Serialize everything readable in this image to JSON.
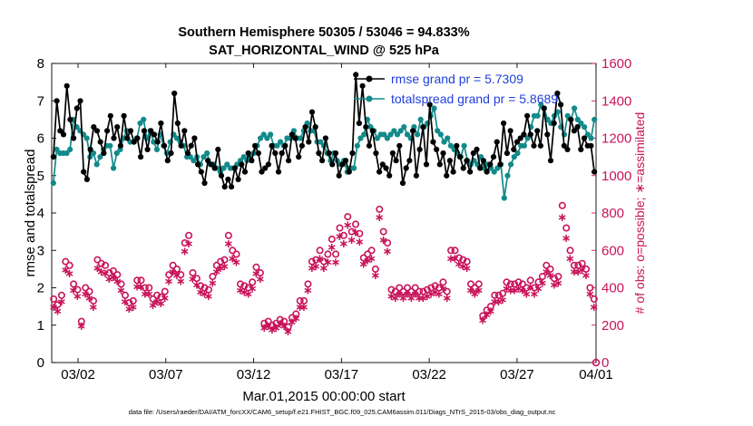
{
  "chart_data": {
    "type": "line",
    "title": "Southern Hemisphere 50305 / 53046 = 94.833%",
    "subtitle": "SAT_HORIZONTAL_WIND @ 525 hPa",
    "xlabel": "Mar.01,2015 00:00:00 start",
    "ylabel": "rmse and totalspread",
    "y2label": "# of obs: o=possible; ∗=assimilated",
    "footer": "data file: /Users/raeder/DAI/ATM_forcXX/CAM6_setup/f.e21.FHIST_BGC.f09_025.CAM6assim.011/Diags_NTrS_2015-03/obs_diag_output.nc",
    "xlim": [
      0,
      31
    ],
    "ylim": [
      0,
      8
    ],
    "y2lim": [
      0,
      1600
    ],
    "xticks": [
      {
        "day": 1.5,
        "label": "03/02"
      },
      {
        "day": 6.5,
        "label": "03/07"
      },
      {
        "day": 11.5,
        "label": "03/12"
      },
      {
        "day": 16.5,
        "label": "03/17"
      },
      {
        "day": 21.5,
        "label": "03/22"
      },
      {
        "day": 26.5,
        "label": "03/27"
      },
      {
        "day": 31.0,
        "label": "04/01"
      }
    ],
    "yticks": [
      "0",
      "1",
      "2",
      "3",
      "4",
      "5",
      "6",
      "7",
      "8"
    ],
    "y2ticks": [
      "0",
      "200",
      "400",
      "600",
      "800",
      "1000",
      "1200",
      "1400",
      "1600"
    ],
    "colors": {
      "rmse": "#000000",
      "spread": "#138a8a",
      "obs": "#c8145a",
      "legend_text": "#1f3fdc"
    },
    "legend": [
      {
        "name": "rmse grand pr = 5.7309",
        "series": "rmse"
      },
      {
        "name": "totalspread grand pr = 5.8689",
        "series": "spread"
      }
    ],
    "series": [
      {
        "name": "rmse",
        "axis": "left",
        "values": [
          5.5,
          7.0,
          6.2,
          6.1,
          7.4,
          6.5,
          6.0,
          6.8,
          7.0,
          5.1,
          4.9,
          5.7,
          6.3,
          6.2,
          5.9,
          5.6,
          6.2,
          6.6,
          6.0,
          6.3,
          5.8,
          6.6,
          6.0,
          6.2,
          5.9,
          6.0,
          5.5,
          6.2,
          5.7,
          6.2,
          6.1,
          5.9,
          6.4,
          5.8,
          5.4,
          5.6,
          7.2,
          6.4,
          5.8,
          6.2,
          5.6,
          5.8,
          6.0,
          5.3,
          5.1,
          4.8,
          5.4,
          5.3,
          5.2,
          5.7,
          5.0,
          4.7,
          4.9,
          4.7,
          5.2,
          4.9,
          5.3,
          5.1,
          5.6,
          5.4,
          5.8,
          5.6,
          5.1,
          5.2,
          5.3,
          5.8,
          5.6,
          5.1,
          5.6,
          5.8,
          5.4,
          6.1,
          6.0,
          5.5,
          5.8,
          6.3,
          5.9,
          6.7,
          6.3,
          5.6,
          5.4,
          6.0,
          5.6,
          5.3,
          5.6,
          5.0,
          5.3,
          5.4,
          5.1,
          5.6,
          7.7,
          6.4,
          7.4,
          6.3,
          5.8,
          6.2,
          5.6,
          5.1,
          5.3,
          5.2,
          5.0,
          5.6,
          5.4,
          5.8,
          4.8,
          5.2,
          5.4,
          6.2,
          5.0,
          5.7,
          6.3,
          5.3,
          6.9,
          5.9,
          5.7,
          5.3,
          5.6,
          5.0,
          5.4,
          5.1,
          5.8,
          5.5,
          5.2,
          5.4,
          5.1,
          5.6,
          5.7,
          5.2,
          5.4,
          5.1,
          5.3,
          5.5,
          5.9,
          5.3,
          6.4,
          5.6,
          6.2,
          5.7,
          5.9,
          6.0,
          6.1,
          6.6,
          6.1,
          5.8,
          6.2,
          5.8,
          6.8,
          6.1,
          5.4,
          6.4,
          7.2,
          6.9,
          5.8,
          5.7,
          6.5,
          6.2,
          6.3,
          5.7,
          6.0,
          5.8,
          5.8,
          5.1
        ]
      },
      {
        "name": "totalspread",
        "axis": "left",
        "values": [
          4.8,
          5.7,
          5.6,
          5.6,
          5.6,
          5.7,
          6.5,
          6.3,
          6.2,
          6.1,
          6.0,
          5.5,
          5.6,
          5.3,
          5.5,
          5.7,
          5.8,
          5.8,
          5.2,
          5.6,
          5.7,
          6.0,
          6.2,
          5.9,
          5.9,
          6.0,
          6.4,
          6.5,
          6.0,
          6.2,
          5.9,
          5.7,
          6.1,
          5.8,
          5.6,
          5.9,
          6.1,
          6.0,
          5.9,
          5.8,
          5.5,
          5.5,
          5.4,
          5.5,
          5.3,
          5.5,
          5.6,
          5.3,
          5.3,
          5.2,
          5.1,
          5.2,
          5.3,
          5.2,
          5.2,
          5.3,
          5.4,
          5.5,
          5.4,
          5.5,
          5.6,
          5.8,
          6.0,
          6.1,
          6.0,
          6.1,
          5.8,
          5.8,
          5.9,
          5.8,
          6.0,
          6.0,
          6.2,
          6.0,
          6.0,
          6.2,
          6.4,
          6.2,
          6.2,
          5.9,
          5.9,
          5.8,
          5.6,
          5.4,
          5.6,
          5.4,
          5.3,
          5.4,
          5.1,
          5.2,
          5.2,
          5.8,
          6.0,
          6.1,
          6.5,
          6.3,
          6.2,
          6.0,
          6.1,
          6.1,
          6.0,
          6.1,
          6.2,
          6.1,
          6.2,
          6.3,
          6.1,
          6.0,
          6.3,
          6.1,
          6.5,
          6.3,
          6.4,
          6.6,
          6.8,
          6.2,
          6.1,
          5.9,
          6.0,
          5.8,
          5.7,
          5.6,
          5.5,
          5.8,
          5.4,
          5.3,
          5.4,
          5.3,
          5.5,
          5.2,
          5.3,
          5.2,
          5.1,
          5.2,
          5.3,
          4.4,
          5.0,
          5.3,
          5.5,
          5.6,
          5.8,
          5.8,
          6.0,
          6.3,
          6.6,
          6.6,
          6.9,
          6.8,
          6.5,
          6.4,
          6.6,
          6.7,
          6.3,
          6.1,
          6.6,
          6.5,
          6.8,
          6.5,
          6.4,
          6.3,
          6.1,
          6.0,
          6.5
        ]
      },
      {
        "name": "obs possible",
        "axis": "right",
        "values": [
          340,
          310,
          360,
          540,
          520,
          420,
          390,
          220,
          400,
          380,
          330,
          550,
          530,
          520,
          480,
          490,
          470,
          420,
          360,
          320,
          330,
          440,
          440,
          400,
          400,
          340,
          360,
          350,
          380,
          470,
          520,
          500,
          470,
          640,
          680,
          480,
          450,
          410,
          400,
          390,
          460,
          520,
          540,
          550,
          680,
          600,
          580,
          420,
          410,
          400,
          430,
          510,
          480,
          210,
          220,
          200,
          210,
          230,
          220,
          190,
          240,
          260,
          330,
          330,
          420,
          540,
          550,
          600,
          540,
          580,
          660,
          580,
          720,
          680,
          780,
          700,
          740,
          690,
          560,
          580,
          600,
          500,
          820,
          700,
          640,
          390,
          380,
          400,
          380,
          400,
          380,
          400,
          380,
          380,
          390,
          400,
          410,
          400,
          430,
          380,
          600,
          600,
          560,
          550,
          540,
          420,
          400,
          420,
          250,
          280,
          300,
          360,
          360,
          370,
          430,
          420,
          420,
          430,
          420,
          400,
          440,
          400,
          430,
          460,
          520,
          500,
          450,
          460,
          840,
          720,
          600,
          520,
          520,
          530,
          500,
          400,
          340
        ]
      },
      {
        "name": "obs assimilated",
        "axis": "right",
        "values": [
          300,
          280,
          330,
          500,
          480,
          390,
          360,
          200,
          370,
          350,
          300,
          510,
          490,
          480,
          450,
          460,
          440,
          390,
          330,
          290,
          300,
          410,
          410,
          370,
          370,
          310,
          330,
          320,
          350,
          440,
          490,
          470,
          440,
          600,
          640,
          450,
          420,
          380,
          370,
          360,
          430,
          490,
          510,
          520,
          640,
          560,
          540,
          390,
          380,
          370,
          400,
          480,
          450,
          190,
          200,
          180,
          190,
          210,
          200,
          170,
          220,
          240,
          300,
          300,
          390,
          510,
          520,
          560,
          510,
          540,
          620,
          540,
          680,
          640,
          740,
          660,
          700,
          650,
          530,
          550,
          560,
          470,
          780,
          660,
          600,
          360,
          350,
          370,
          350,
          370,
          350,
          370,
          350,
          350,
          360,
          370,
          380,
          370,
          400,
          350,
          560,
          560,
          530,
          520,
          510,
          390,
          370,
          390,
          230,
          260,
          280,
          330,
          330,
          340,
          400,
          390,
          390,
          400,
          390,
          370,
          410,
          370,
          400,
          430,
          490,
          470,
          420,
          430,
          780,
          670,
          560,
          490,
          490,
          500,
          470,
          370,
          300
        ]
      }
    ]
  }
}
